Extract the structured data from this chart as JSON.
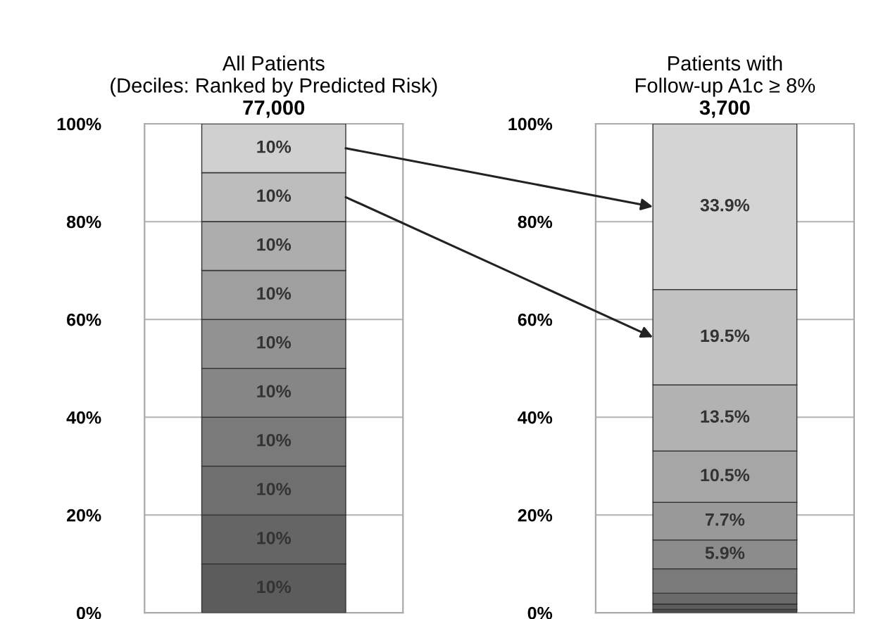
{
  "chart_data": [
    {
      "type": "bar",
      "stacked": true,
      "title": "All Patients\n(Deciles: Ranked by Predicted Risk)",
      "subtitle": "77,000",
      "categories": [
        null
      ],
      "ylim": [
        0,
        100
      ],
      "yticks": [
        {
          "value": 0,
          "label": "0%"
        },
        {
          "value": 20,
          "label": "20%"
        },
        {
          "value": 40,
          "label": "40%"
        },
        {
          "value": 60,
          "label": "60%"
        },
        {
          "value": 80,
          "label": "80%"
        },
        {
          "value": 100,
          "label": "100%"
        }
      ],
      "grid": "y",
      "series": [
        {
          "color": "#5c5c5c",
          "values": [
            10
          ],
          "value_labels": [
            "10%"
          ]
        },
        {
          "color": "#656565",
          "values": [
            10
          ],
          "value_labels": [
            "10%"
          ]
        },
        {
          "color": "#6f6f6f",
          "values": [
            10
          ],
          "value_labels": [
            "10%"
          ]
        },
        {
          "color": "#7a7a7a",
          "values": [
            10
          ],
          "value_labels": [
            "10%"
          ]
        },
        {
          "color": "#868686",
          "values": [
            10
          ],
          "value_labels": [
            "10%"
          ]
        },
        {
          "color": "#929292",
          "values": [
            10
          ],
          "value_labels": [
            "10%"
          ]
        },
        {
          "color": "#9f9f9f",
          "values": [
            10
          ],
          "value_labels": [
            "10%"
          ]
        },
        {
          "color": "#adadad",
          "values": [
            10
          ],
          "value_labels": [
            "10%"
          ]
        },
        {
          "color": "#bdbdbd",
          "values": [
            10
          ],
          "value_labels": [
            "10%"
          ]
        },
        {
          "color": "#d0d0d0",
          "values": [
            10
          ],
          "value_labels": [
            "10%"
          ]
        }
      ]
    },
    {
      "type": "bar",
      "stacked": true,
      "title": "Patients with\nFollow-up A1c ≥ 8%",
      "subtitle": "3,700",
      "categories": [
        null
      ],
      "ylim": [
        0,
        100
      ],
      "yticks": [
        {
          "value": 0,
          "label": "0%"
        },
        {
          "value": 20,
          "label": "20%"
        },
        {
          "value": 40,
          "label": "40%"
        },
        {
          "value": 60,
          "label": "60%"
        },
        {
          "value": 80,
          "label": "80%"
        },
        {
          "value": 100,
          "label": "100%"
        }
      ],
      "grid": "y",
      "series": [
        {
          "color": "#4c4c4c",
          "values": [
            0.7
          ],
          "value_labels": [
            null
          ]
        },
        {
          "color": "#5c5c5c",
          "values": [
            1.1
          ],
          "value_labels": [
            null
          ]
        },
        {
          "color": "#6a6a6a",
          "values": [
            2.2
          ],
          "value_labels": [
            null
          ]
        },
        {
          "color": "#7a7a7a",
          "values": [
            5.0
          ],
          "value_labels": [
            null
          ]
        },
        {
          "color": "#8c8c8c",
          "values": [
            5.9
          ],
          "value_labels": [
            "5.9%"
          ]
        },
        {
          "color": "#999999",
          "values": [
            7.7
          ],
          "value_labels": [
            "7.7%"
          ]
        },
        {
          "color": "#a6a6a6",
          "values": [
            10.5
          ],
          "value_labels": [
            "10.5%"
          ]
        },
        {
          "color": "#b2b2b2",
          "values": [
            13.5
          ],
          "value_labels": [
            "13.5%"
          ]
        },
        {
          "color": "#c2c2c2",
          "values": [
            19.5
          ],
          "value_labels": [
            "19.5%"
          ]
        },
        {
          "color": "#d4d4d4",
          "values": [
            33.9
          ],
          "value_labels": [
            "33.9%"
          ]
        }
      ]
    }
  ]
}
